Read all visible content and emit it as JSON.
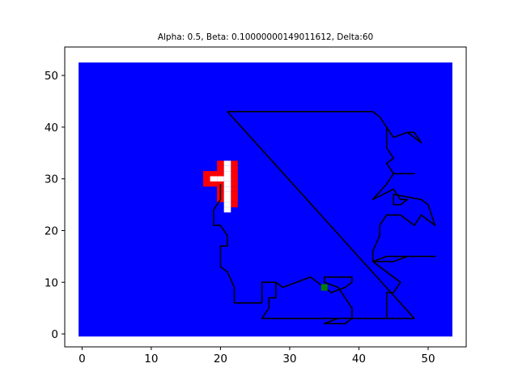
{
  "chart_data": {
    "type": "scatter",
    "title": "Alpha: 0.5, Beta: 0.10000000149011612, Delta:60",
    "xlabel": "",
    "ylabel": "",
    "xlim": [
      -2.5,
      55.5
    ],
    "ylim": [
      -2.5,
      55.5
    ],
    "x_ticks": [
      0,
      10,
      20,
      30,
      40,
      50
    ],
    "y_ticks": [
      0,
      10,
      20,
      30,
      40,
      50
    ],
    "grid": false,
    "background_field": {
      "x_range": [
        0,
        53
      ],
      "y_range": [
        0,
        52
      ],
      "color": "#0000ff"
    },
    "red_cells": [
      [
        18,
        31
      ],
      [
        19,
        31
      ],
      [
        20,
        31
      ],
      [
        18,
        30
      ],
      [
        19,
        30
      ],
      [
        20,
        30
      ],
      [
        20,
        32
      ],
      [
        20,
        33
      ],
      [
        18,
        29
      ],
      [
        19,
        29
      ],
      [
        20,
        29
      ],
      [
        20,
        28
      ],
      [
        20,
        27
      ],
      [
        20,
        26
      ],
      [
        22,
        33
      ],
      [
        22,
        32
      ],
      [
        22,
        31
      ],
      [
        22,
        30
      ],
      [
        22,
        29
      ],
      [
        22,
        28
      ],
      [
        22,
        27
      ],
      [
        22,
        26
      ],
      [
        22,
        25
      ]
    ],
    "white_cells": [
      [
        19,
        30
      ],
      [
        20,
        30
      ],
      [
        21,
        33
      ],
      [
        21,
        32
      ],
      [
        21,
        31
      ],
      [
        21,
        30
      ],
      [
        21,
        29
      ],
      [
        21,
        28
      ],
      [
        21,
        27
      ],
      [
        21,
        26
      ],
      [
        21,
        25
      ],
      [
        21,
        24
      ]
    ],
    "green_point": [
      35,
      9
    ],
    "path": [
      [
        21,
        43
      ],
      [
        25,
        43
      ],
      [
        30,
        43
      ],
      [
        35,
        43
      ],
      [
        40,
        43
      ],
      [
        42,
        43
      ],
      [
        43,
        42
      ],
      [
        44,
        40
      ],
      [
        45,
        38
      ],
      [
        47,
        39
      ],
      [
        48,
        39
      ],
      [
        49,
        37
      ],
      [
        48,
        38
      ],
      [
        47,
        39
      ],
      [
        45,
        38
      ],
      [
        44,
        40
      ],
      [
        44,
        36
      ],
      [
        45,
        34
      ],
      [
        44,
        33
      ],
      [
        45,
        31
      ],
      [
        48,
        31
      ],
      [
        45,
        31
      ],
      [
        44,
        29
      ],
      [
        42,
        26
      ],
      [
        45,
        28
      ],
      [
        46,
        26
      ],
      [
        47,
        26
      ],
      [
        46,
        25
      ],
      [
        45,
        25
      ],
      [
        45,
        27
      ],
      [
        49,
        26
      ],
      [
        50,
        25
      ],
      [
        51,
        21
      ],
      [
        49,
        23
      ],
      [
        48,
        21
      ],
      [
        47,
        22
      ],
      [
        46,
        23
      ],
      [
        44,
        23
      ],
      [
        43,
        21
      ],
      [
        43,
        19
      ],
      [
        42,
        16
      ],
      [
        42,
        14
      ],
      [
        44,
        15
      ],
      [
        47,
        15
      ],
      [
        51,
        15
      ],
      [
        47,
        15
      ],
      [
        45,
        14
      ],
      [
        42,
        14
      ],
      [
        46,
        10
      ],
      [
        45,
        8
      ],
      [
        44,
        8
      ],
      [
        44,
        3
      ],
      [
        40,
        3
      ],
      [
        37,
        3
      ],
      [
        35,
        2
      ],
      [
        38,
        2
      ],
      [
        39,
        3
      ],
      [
        39,
        5
      ],
      [
        38,
        7
      ],
      [
        37,
        9
      ],
      [
        35,
        10
      ],
      [
        35,
        11
      ],
      [
        39,
        11
      ],
      [
        39,
        10
      ],
      [
        38,
        9
      ],
      [
        36,
        8
      ],
      [
        35,
        9
      ],
      [
        33,
        11
      ],
      [
        29,
        9
      ],
      [
        28,
        10
      ],
      [
        26,
        10
      ],
      [
        28,
        10
      ],
      [
        28,
        7
      ],
      [
        27,
        7
      ],
      [
        27,
        5
      ],
      [
        26,
        3
      ],
      [
        29,
        3
      ],
      [
        33,
        3
      ],
      [
        37,
        3
      ],
      [
        40,
        3
      ],
      [
        48,
        3
      ],
      [
        21,
        43
      ]
    ],
    "left_path": [
      [
        20,
        29
      ],
      [
        20,
        26
      ],
      [
        19,
        24
      ],
      [
        19,
        23
      ],
      [
        19,
        21
      ],
      [
        20,
        21
      ],
      [
        21,
        19
      ],
      [
        21,
        17
      ],
      [
        20,
        17
      ],
      [
        20,
        13
      ],
      [
        21,
        12
      ],
      [
        22,
        9
      ],
      [
        22,
        6
      ],
      [
        26,
        6
      ],
      [
        26,
        10
      ]
    ]
  }
}
